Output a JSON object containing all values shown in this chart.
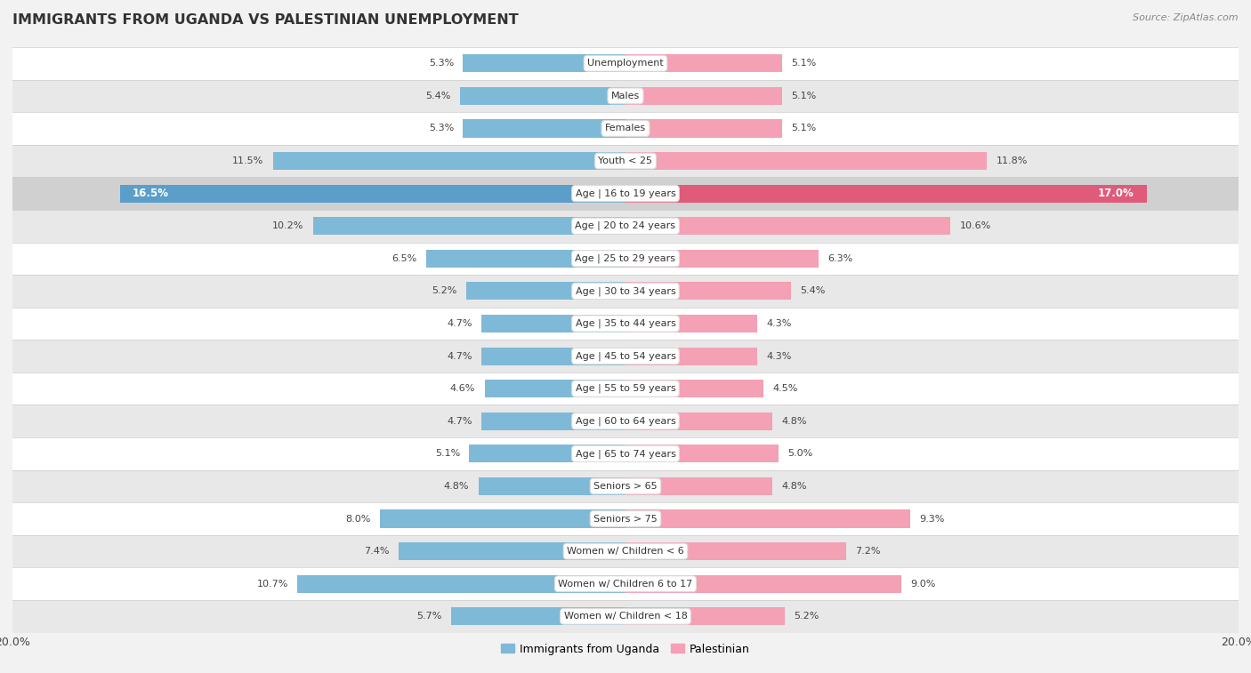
{
  "title": "IMMIGRANTS FROM UGANDA VS PALESTINIAN UNEMPLOYMENT",
  "source": "Source: ZipAtlas.com",
  "categories": [
    "Unemployment",
    "Males",
    "Females",
    "Youth < 25",
    "Age | 16 to 19 years",
    "Age | 20 to 24 years",
    "Age | 25 to 29 years",
    "Age | 30 to 34 years",
    "Age | 35 to 44 years",
    "Age | 45 to 54 years",
    "Age | 55 to 59 years",
    "Age | 60 to 64 years",
    "Age | 65 to 74 years",
    "Seniors > 65",
    "Seniors > 75",
    "Women w/ Children < 6",
    "Women w/ Children 6 to 17",
    "Women w/ Children < 18"
  ],
  "uganda_values": [
    5.3,
    5.4,
    5.3,
    11.5,
    16.5,
    10.2,
    6.5,
    5.2,
    4.7,
    4.7,
    4.6,
    4.7,
    5.1,
    4.8,
    8.0,
    7.4,
    10.7,
    5.7
  ],
  "palestinian_values": [
    5.1,
    5.1,
    5.1,
    11.8,
    17.0,
    10.6,
    6.3,
    5.4,
    4.3,
    4.3,
    4.5,
    4.8,
    5.0,
    4.8,
    9.3,
    7.2,
    9.0,
    5.2
  ],
  "uganda_color": "#7fb9d8",
  "palestinian_color": "#f4a0b5",
  "uganda_highlight_color": "#5a9ec9",
  "palestinian_highlight_color": "#e05a7a",
  "highlight_row": 4,
  "xlim": 20.0,
  "bg_color": "#f2f2f2",
  "row_bg_white": "#ffffff",
  "row_bg_gray": "#e8e8e8",
  "highlight_bg": "#d0d0d0",
  "label_bg": "#ffffff",
  "legend_uganda": "Immigrants from Uganda",
  "legend_palestinian": "Palestinian",
  "bar_height": 0.55
}
